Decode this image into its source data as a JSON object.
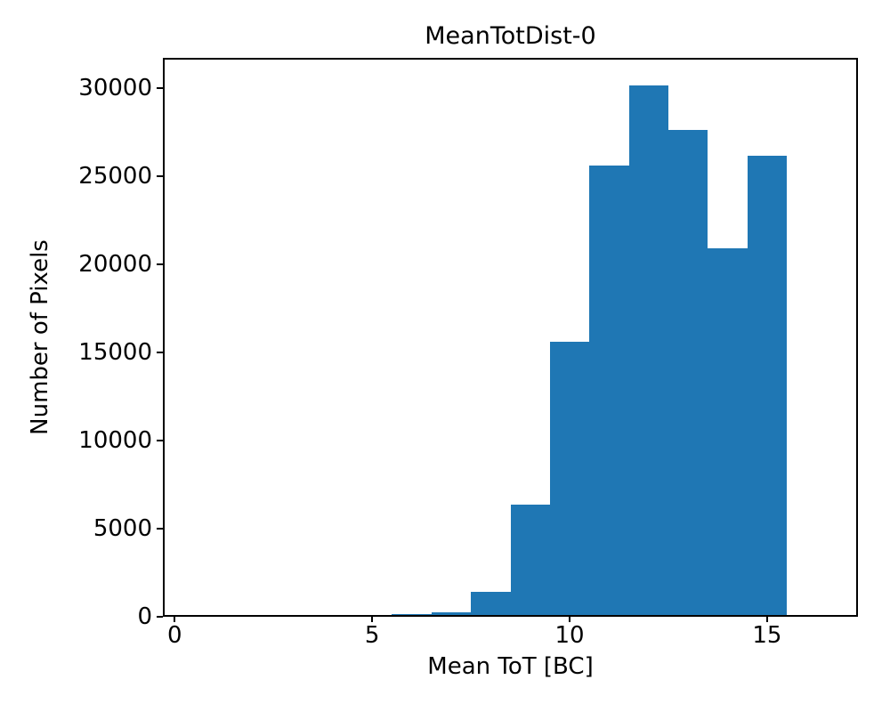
{
  "figure": {
    "title": "MeanTotDist-0",
    "xlabel": "Mean ToT [BC]",
    "ylabel": "Number of Pixels"
  },
  "chart_data": {
    "type": "bar",
    "subtype": "histogram",
    "title": "MeanTotDist-0",
    "xlabel": "Mean ToT [BC]",
    "ylabel": "Number of Pixels",
    "bin_edges": [
      5.5,
      6.5,
      7.5,
      8.5,
      9.5,
      10.5,
      11.5,
      12.5,
      13.5,
      14.5,
      15.5
    ],
    "counts": [
      140,
      270,
      1400,
      6350,
      15600,
      25600,
      30150,
      27600,
      20900,
      26150
    ],
    "xticks": [
      0,
      5,
      10,
      15
    ],
    "yticks": [
      0,
      5000,
      10000,
      15000,
      20000,
      25000,
      30000
    ],
    "xlim": [
      -0.3,
      17.3
    ],
    "ylim": [
      0,
      31700
    ],
    "bar_color": "#1f77b4",
    "axis_color": "#000000",
    "background_color": "#ffffff",
    "grid": false,
    "legend_position": "none"
  }
}
